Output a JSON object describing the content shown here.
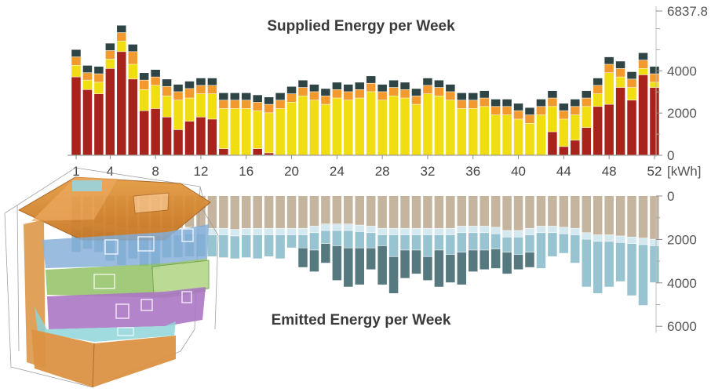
{
  "chart_data": [
    {
      "type": "bar",
      "stacked": true,
      "title": "Supplied Energy per Week",
      "xlabel": "",
      "ylabel": "",
      "unit": "[kWh]",
      "x": [
        1,
        2,
        3,
        4,
        5,
        6,
        7,
        8,
        9,
        10,
        11,
        12,
        13,
        14,
        15,
        16,
        17,
        18,
        19,
        20,
        21,
        22,
        23,
        24,
        25,
        26,
        27,
        28,
        29,
        30,
        31,
        32,
        33,
        34,
        35,
        36,
        37,
        38,
        39,
        40,
        41,
        42,
        43,
        44,
        45,
        46,
        47,
        48,
        49,
        50,
        51,
        52
      ],
      "x_tick_labels": [
        "1",
        "4",
        "8",
        "12",
        "16",
        "20",
        "24",
        "28",
        "32",
        "36",
        "40",
        "44",
        "48",
        "52"
      ],
      "y_tick_labels": [
        "0",
        "2000",
        "4000",
        "6837.8"
      ],
      "ylim": [
        0,
        6837.8
      ],
      "colors": [
        "#a8231b",
        "#f0dd12",
        "#f29a2e",
        "#2f4444"
      ],
      "series": [
        {
          "values": [
            3700,
            3100,
            2900,
            4100,
            4900,
            3600,
            2100,
            2200,
            1800,
            1200,
            1600,
            1800,
            1700,
            300,
            0,
            0,
            300,
            100,
            0,
            0,
            0,
            0,
            0,
            0,
            0,
            0,
            0,
            0,
            0,
            0,
            0,
            0,
            0,
            0,
            0,
            0,
            0,
            0,
            0,
            0,
            0,
            0,
            1100,
            400,
            700,
            1300,
            2300,
            2400,
            3200,
            2600,
            3800,
            3200
          ]
        },
        {
          "values": [
            550,
            450,
            550,
            450,
            500,
            700,
            1000,
            1100,
            1000,
            1400,
            1100,
            1100,
            1200,
            1900,
            2200,
            2200,
            1800,
            1900,
            2200,
            2500,
            2800,
            2600,
            2400,
            2700,
            2600,
            2700,
            3000,
            2600,
            2800,
            2700,
            2400,
            2900,
            2800,
            2600,
            2200,
            2200,
            2300,
            1900,
            1900,
            1700,
            1500,
            1900,
            1200,
            1300,
            1200,
            1000,
            600,
            1500,
            500,
            600,
            300,
            250
          ]
        },
        {
          "values": [
            400,
            350,
            400,
            400,
            400,
            600,
            450,
            400,
            450,
            400,
            450,
            400,
            400,
            400,
            400,
            400,
            400,
            400,
            400,
            400,
            400,
            400,
            400,
            400,
            400,
            400,
            400,
            400,
            400,
            400,
            400,
            400,
            400,
            400,
            400,
            400,
            400,
            400,
            400,
            400,
            400,
            400,
            400,
            400,
            400,
            400,
            400,
            400,
            400,
            400,
            400,
            400
          ]
        },
        {
          "values": [
            350,
            350,
            350,
            350,
            350,
            350,
            350,
            350,
            350,
            350,
            350,
            350,
            350,
            350,
            350,
            350,
            350,
            350,
            350,
            350,
            350,
            350,
            350,
            350,
            350,
            350,
            350,
            350,
            350,
            350,
            350,
            350,
            350,
            350,
            350,
            350,
            350,
            350,
            350,
            350,
            350,
            350,
            350,
            350,
            350,
            350,
            350,
            350,
            350,
            350,
            350,
            350
          ]
        }
      ]
    },
    {
      "type": "bar",
      "stacked": true,
      "title": "Emitted Energy per Week",
      "xlabel": "",
      "ylabel": "",
      "y_tick_labels": [
        "0",
        "2000",
        "4000",
        "6000"
      ],
      "ylim": [
        0,
        6800
      ],
      "y_inverted": true,
      "colors": [
        "#c5b49e",
        "#d3e8ef",
        "#98c4d2",
        "#56787f"
      ],
      "series": [
        {
          "values": [
            1250,
            1150,
            1300,
            1350,
            1450,
            1500,
            1500,
            1500,
            1500,
            1500,
            1450,
            1450,
            1500,
            1500,
            1550,
            1500,
            1500,
            1500,
            1500,
            1500,
            1500,
            1400,
            1300,
            1300,
            1300,
            1350,
            1400,
            1500,
            1500,
            1500,
            1500,
            1500,
            1500,
            1500,
            1400,
            1400,
            1400,
            1450,
            1600,
            1600,
            1500,
            1400,
            1400,
            1450,
            1500,
            1700,
            1800,
            1800,
            1850,
            1900,
            1950,
            2000
          ]
        },
        {
          "values": [
            300,
            250,
            300,
            300,
            300,
            300,
            300,
            300,
            300,
            300,
            300,
            300,
            300,
            300,
            300,
            300,
            300,
            300,
            300,
            300,
            300,
            300,
            300,
            300,
            300,
            300,
            300,
            300,
            300,
            300,
            300,
            300,
            300,
            300,
            300,
            300,
            300,
            300,
            300,
            300,
            300,
            300,
            300,
            300,
            300,
            300,
            300,
            300,
            300,
            300,
            300,
            300
          ]
        },
        {
          "values": [
            1050,
            1050,
            1000,
            1350,
            1450,
            1100,
            1450,
            1600,
            1050,
            1050,
            1050,
            1050,
            1000,
            1050,
            1050,
            1050,
            1100,
            1000,
            1100,
            600,
            600,
            800,
            600,
            700,
            800,
            750,
            700,
            500,
            1000,
            700,
            700,
            1000,
            700,
            900,
            900,
            800,
            800,
            700,
            700,
            800,
            800,
            1650,
            1100,
            900,
            1300,
            2200,
            2400,
            2100,
            1800,
            2400,
            2800,
            1700
          ]
        },
        {
          "values": [
            0,
            0,
            0,
            0,
            0,
            0,
            0,
            0,
            0,
            0,
            0,
            0,
            0,
            0,
            0,
            0,
            0,
            0,
            0,
            0,
            900,
            1000,
            900,
            1600,
            1800,
            1700,
            1000,
            1800,
            1700,
            1300,
            1100,
            1100,
            1700,
            1300,
            1500,
            1000,
            900,
            900,
            1000,
            700,
            700,
            0,
            0,
            0,
            0,
            0,
            0,
            0,
            0,
            0,
            0,
            0
          ]
        }
      ]
    }
  ]
}
